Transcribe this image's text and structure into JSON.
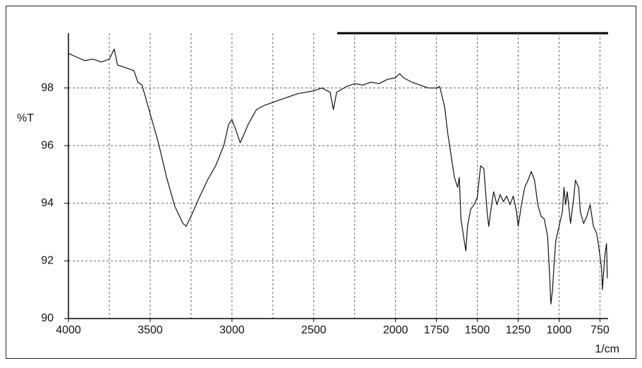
{
  "chart_data": {
    "type": "line",
    "y_label": "%T",
    "x_label": "1/cm",
    "xlim": [
      4000,
      700
    ],
    "ylim": [
      90,
      99.9
    ],
    "xticks": [
      4000,
      3500,
      3000,
      2500,
      2000,
      1750,
      1500,
      1250,
      1000,
      750
    ],
    "xgrid": [
      3750,
      3500,
      3250,
      3000,
      2750,
      2500,
      2250,
      2000,
      1750,
      1500,
      1250,
      1000,
      750
    ],
    "yticks": [
      90,
      92,
      94,
      96,
      98
    ],
    "grid": true,
    "series": [
      {
        "color": "#111111",
        "x": [
          4000,
          3950,
          3900,
          3850,
          3800,
          3750,
          3720,
          3700,
          3650,
          3600,
          3575,
          3550,
          3500,
          3450,
          3400,
          3350,
          3300,
          3280,
          3250,
          3200,
          3150,
          3100,
          3050,
          3020,
          3000,
          2980,
          2950,
          2930,
          2900,
          2850,
          2800,
          2750,
          2700,
          2650,
          2600,
          2550,
          2500,
          2450,
          2400,
          2380,
          2360,
          2300,
          2250,
          2200,
          2150,
          2100,
          2050,
          2000,
          1975,
          1950,
          1900,
          1850,
          1800,
          1750,
          1730,
          1700,
          1680,
          1660,
          1640,
          1620,
          1610,
          1600,
          1580,
          1570,
          1560,
          1540,
          1520,
          1500,
          1480,
          1460,
          1440,
          1430,
          1410,
          1400,
          1380,
          1360,
          1340,
          1320,
          1300,
          1280,
          1260,
          1250,
          1230,
          1210,
          1190,
          1170,
          1150,
          1130,
          1110,
          1090,
          1070,
          1060,
          1050,
          1040,
          1030,
          1020,
          1000,
          980,
          970,
          960,
          950,
          930,
          910,
          900,
          880,
          870,
          850,
          830,
          810,
          790,
          770,
          760,
          740,
          735,
          720,
          710,
          705
        ],
        "values": [
          99.2,
          99.07,
          98.95,
          99.0,
          98.9,
          99.0,
          99.35,
          98.8,
          98.7,
          98.6,
          98.2,
          98.1,
          97.1,
          96.1,
          94.9,
          93.9,
          93.3,
          93.2,
          93.55,
          94.2,
          94.8,
          95.3,
          96.0,
          96.75,
          96.9,
          96.6,
          96.1,
          96.35,
          96.75,
          97.25,
          97.4,
          97.5,
          97.6,
          97.7,
          97.8,
          97.85,
          97.9,
          98.0,
          97.85,
          97.25,
          97.85,
          98.05,
          98.15,
          98.1,
          98.2,
          98.15,
          98.3,
          98.35,
          98.5,
          98.35,
          98.2,
          98.1,
          98.0,
          98.0,
          98.05,
          97.35,
          96.4,
          95.65,
          94.9,
          94.55,
          94.9,
          93.45,
          92.7,
          92.35,
          93.2,
          93.8,
          93.95,
          94.2,
          95.3,
          95.2,
          93.7,
          93.2,
          94.05,
          94.4,
          93.95,
          94.3,
          94.05,
          94.25,
          93.95,
          94.25,
          93.7,
          93.2,
          93.95,
          94.55,
          94.8,
          95.1,
          94.8,
          93.95,
          93.55,
          93.45,
          92.85,
          91.75,
          90.5,
          91.0,
          91.95,
          92.7,
          93.2,
          93.7,
          94.55,
          93.95,
          94.4,
          93.3,
          94.2,
          94.8,
          94.55,
          93.7,
          93.3,
          93.55,
          93.95,
          93.2,
          92.95,
          92.6,
          91.75,
          91.0,
          92.2,
          92.6,
          91.4
        ]
      }
    ]
  }
}
